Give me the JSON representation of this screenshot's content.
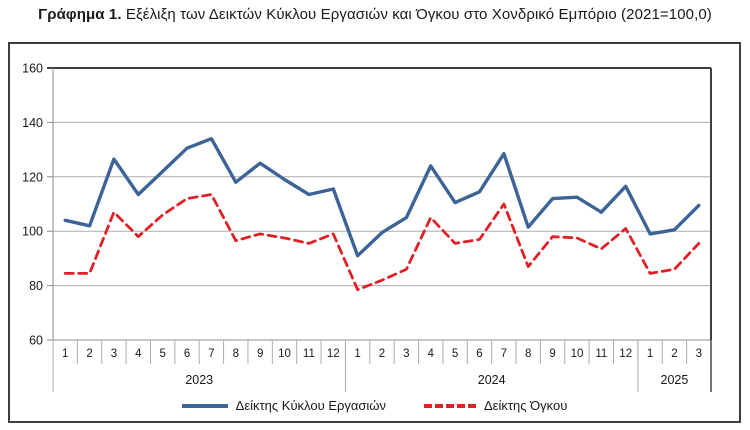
{
  "title": {
    "prefix": "Γράφημα 1.",
    "text": " Εξέλιξη των Δεικτών Κύκλου Εργασιών και Όγκου στο Χονδρικό Εμπόριο (2021=100,0)"
  },
  "chart_data": {
    "type": "line",
    "title": "Εξέλιξη των Δεικτών Κύκλου Εργασιών και Όγκου στο Χονδρικό Εμπόριο (2021=100,0)",
    "base_year_note": "2021=100,0",
    "y_axis": {
      "min": 60,
      "max": 160,
      "step": 20,
      "ticks": [
        160,
        140,
        120,
        100,
        80,
        60
      ],
      "grid": true
    },
    "x_axis": {
      "groups": [
        {
          "year": "2023",
          "months": [
            "1",
            "2",
            "3",
            "4",
            "5",
            "6",
            "7",
            "8",
            "9",
            "10",
            "11",
            "12"
          ]
        },
        {
          "year": "2024",
          "months": [
            "1",
            "2",
            "3",
            "4",
            "5",
            "6",
            "7",
            "8",
            "9",
            "10",
            "11",
            "12"
          ]
        },
        {
          "year": "2025",
          "months": [
            "1",
            "2",
            "3"
          ]
        }
      ]
    },
    "series": [
      {
        "name": "Δείκτης Κύκλου Εργασιών",
        "style": "solid",
        "color": "#3d6497",
        "values": [
          104,
          102,
          126.5,
          113.5,
          122,
          130.5,
          134,
          118,
          125,
          119,
          113.5,
          115.5,
          91,
          99.5,
          105,
          124,
          110.5,
          114.5,
          128.5,
          101.5,
          112,
          112.5,
          107,
          116.5,
          99,
          100.5,
          109.5
        ]
      },
      {
        "name": "Δείκτης Όγκου",
        "style": "dashed",
        "color": "#de2126",
        "values": [
          84.5,
          84.5,
          107,
          98,
          106,
          112,
          113.5,
          96.5,
          99,
          97.5,
          95.5,
          99,
          78.5,
          82,
          86,
          105,
          95.5,
          97,
          110,
          87,
          98,
          97.5,
          93.5,
          101,
          84.5,
          86,
          95.5
        ]
      }
    ],
    "legend_position": "bottom"
  },
  "colors": {
    "grid": "#adadad",
    "axis": "#8c8c8c",
    "frame_line": "#3f3f3f",
    "text": "#1a1a1a"
  }
}
